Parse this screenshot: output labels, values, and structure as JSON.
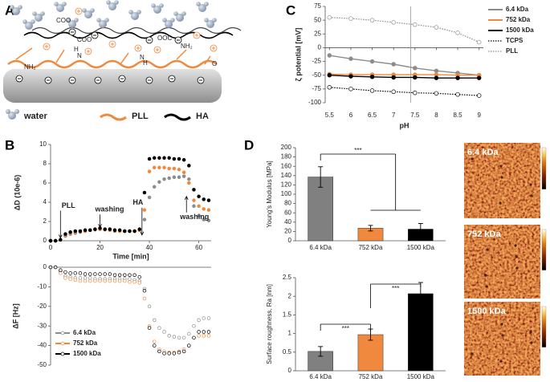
{
  "panels": [
    "A",
    "B",
    "C",
    "D"
  ],
  "schematic": {
    "legend": [
      "water",
      "PLL",
      "HA"
    ],
    "groups": [
      "COO",
      "COO",
      "OOC",
      "NH₂",
      "NH₂",
      "H",
      "N",
      "N",
      "H",
      "O"
    ]
  },
  "images": [
    {
      "label": "6.4 kDa"
    },
    {
      "label": "752 kDa"
    },
    {
      "label": "1500 kDa"
    }
  ],
  "chart_data": [
    {
      "type": "line",
      "ylabel": "ζ potential [mV]",
      "xlabel": "pH",
      "x": [
        5.5,
        6,
        6.5,
        7,
        7.5,
        8,
        8.5,
        9
      ],
      "xlim": [
        5.4,
        9.1
      ],
      "xticks": [
        5.5,
        6,
        6.5,
        7,
        7.5,
        8,
        8.5,
        9
      ],
      "ylim": [
        -100,
        75
      ],
      "yticks": [
        -100,
        -75,
        -50,
        -25,
        0,
        25,
        50,
        75
      ],
      "reference_x": 7.4,
      "legend": "outside right",
      "series": [
        {
          "name": "6.4 kDa",
          "color": "#8c8c8c",
          "line_style": "solid",
          "marker": "filled",
          "values": [
            -14,
            -20,
            -25,
            -30,
            -37,
            -42,
            -46,
            -50
          ]
        },
        {
          "name": "752 kDa",
          "color": "#f0883e",
          "line_style": "solid",
          "marker": "filled",
          "values": [
            -48,
            -49,
            -49,
            -49,
            -49,
            -49,
            -50,
            -50
          ]
        },
        {
          "name": "1500 kDa",
          "color": "#000000",
          "line_style": "solid",
          "marker": "filled",
          "values": [
            -50,
            -52,
            -53,
            -54,
            -54,
            -55,
            -55,
            -55
          ]
        },
        {
          "name": "TCPS",
          "color": "#000000",
          "line_style": "dotted",
          "marker": "open",
          "values": [
            -72,
            -75,
            -78,
            -80,
            -82,
            -83,
            -85,
            -87
          ]
        },
        {
          "name": "PLL",
          "color": "#8c8c8c",
          "line_style": "dotted",
          "marker": "open",
          "values": [
            55,
            53,
            50,
            46,
            42,
            37,
            27,
            10
          ]
        }
      ]
    },
    {
      "type": "line",
      "ylabel": "ΔD (10e-6)",
      "xlabel": "Time [min]",
      "x": [
        0,
        2,
        4,
        6,
        8,
        10,
        12,
        14,
        16,
        18,
        20,
        22,
        24,
        26,
        28,
        30,
        32,
        34,
        36,
        38,
        40,
        42,
        44,
        46,
        48,
        50,
        52,
        54,
        56,
        58,
        60,
        62,
        64
      ],
      "xlim": [
        0,
        65
      ],
      "xticks": [
        0,
        20,
        40,
        60
      ],
      "ylim": [
        0,
        10
      ],
      "yticks": [
        0,
        2,
        4,
        6,
        8,
        10
      ],
      "annotations": [
        {
          "text": "PLL",
          "x": 4,
          "y": 0.3
        },
        {
          "text": "washing",
          "x": 20,
          "y": 1.4
        },
        {
          "text": "HA",
          "x": 37,
          "y": 0.6
        },
        {
          "text": "washing",
          "x": 55,
          "y": 4.6
        }
      ],
      "series": [
        {
          "name": "6.4 kDa",
          "color": "#8c8c8c",
          "line_style": "none",
          "marker": "filled",
          "values": [
            0,
            0,
            0.1,
            0.5,
            0.7,
            0.8,
            0.9,
            1.0,
            1.1,
            1.15,
            1.2,
            1.15,
            1.1,
            1.0,
            1.0,
            1.0,
            1.0,
            1.0,
            1.1,
            2.2,
            4.5,
            5.6,
            6.1,
            6.4,
            6.5,
            6.6,
            6.6,
            6.7,
            6.4,
            3.6,
            2.6,
            2.2,
            2.1
          ]
        },
        {
          "name": "752 kDa",
          "color": "#f0883e",
          "line_style": "none",
          "marker": "filled",
          "values": [
            0,
            0,
            0.1,
            0.6,
            0.8,
            0.9,
            1.0,
            1.0,
            1.1,
            1.2,
            1.2,
            1.2,
            1.1,
            1.1,
            1.0,
            1.0,
            1.0,
            1.0,
            1.1,
            3.2,
            7.2,
            7.6,
            7.6,
            7.6,
            7.5,
            7.5,
            7.4,
            7.1,
            6.0,
            4.2,
            3.6,
            3.3,
            3.2
          ]
        },
        {
          "name": "1500 kDa",
          "color": "#000000",
          "line_style": "none",
          "marker": "filled",
          "values": [
            0,
            0,
            0.1,
            0.7,
            0.9,
            1.0,
            1.0,
            1.1,
            1.1,
            1.2,
            1.3,
            1.2,
            1.2,
            1.1,
            1.1,
            1.0,
            1.0,
            1.0,
            1.2,
            5.0,
            8.5,
            8.6,
            8.6,
            8.6,
            8.6,
            8.5,
            8.5,
            8.4,
            7.8,
            5.3,
            4.6,
            4.3,
            4.2
          ]
        }
      ]
    },
    {
      "type": "line",
      "ylabel": "ΔF [Hz]",
      "x": [
        0,
        2,
        4,
        6,
        8,
        10,
        12,
        14,
        16,
        18,
        20,
        22,
        24,
        26,
        28,
        30,
        32,
        34,
        36,
        38,
        40,
        42,
        44,
        46,
        48,
        50,
        52,
        54,
        56,
        58,
        60,
        62,
        64
      ],
      "xlim": [
        0,
        65
      ],
      "ylim": [
        -50,
        0
      ],
      "yticks": [
        -50,
        -40,
        -30,
        -20,
        -10,
        0
      ],
      "legend": "lower left",
      "series": [
        {
          "name": "6.4 kDa",
          "color": "#8c8c8c",
          "line_style": "none",
          "marker": "open",
          "values": [
            0,
            0,
            -2,
            -4.5,
            -5,
            -5.5,
            -5.5,
            -5.5,
            -5.5,
            -6,
            -6,
            -6,
            -6,
            -6,
            -6,
            -6,
            -6,
            -6.5,
            -7,
            -11,
            -20,
            -27,
            -31,
            -33,
            -35,
            -35.5,
            -36,
            -36,
            -34,
            -30,
            -27,
            -26,
            -26
          ]
        },
        {
          "name": "752 kDa",
          "color": "#f0883e",
          "line_style": "none",
          "marker": "open",
          "values": [
            0,
            0,
            -3,
            -5.5,
            -6,
            -6.5,
            -7,
            -7,
            -7,
            -7,
            -7,
            -7,
            -7,
            -7,
            -7,
            -7,
            -7.5,
            -7.5,
            -8,
            -16,
            -30,
            -38,
            -42,
            -43,
            -43.5,
            -43.5,
            -43,
            -42,
            -40,
            -36,
            -35,
            -35,
            -35
          ]
        },
        {
          "name": "1500 kDa",
          "color": "#000000",
          "line_style": "none",
          "marker": "open",
          "values": [
            0,
            0,
            -1.5,
            -2.5,
            -3,
            -3,
            -3,
            -3.5,
            -3.5,
            -3.5,
            -3.5,
            -3.5,
            -3.5,
            -4,
            -4,
            -4,
            -4,
            -4,
            -5,
            -12,
            -31,
            -40,
            -43,
            -44,
            -44,
            -44,
            -43.5,
            -43,
            -40,
            -36,
            -33,
            -33,
            -33
          ]
        }
      ]
    },
    {
      "type": "bar",
      "ylabel": "Young's Modulus [MPa]",
      "categories": [
        "6.4 kDa",
        "752 kDa",
        "1500 kDa"
      ],
      "values": [
        137,
        27,
        25
      ],
      "errors": [
        22,
        6,
        12
      ],
      "colors": [
        "#808080",
        "#f0883e",
        "#000000"
      ],
      "ylim": [
        0,
        200
      ],
      "yticks": [
        0,
        20,
        40,
        60,
        80,
        100,
        120,
        140,
        160,
        180,
        200
      ],
      "significance": [
        "***"
      ]
    },
    {
      "type": "bar",
      "ylabel": "Surface roughness, Ra [nm]",
      "categories": [
        "6.4 kDa",
        "752 kDa",
        "1500 kDa"
      ],
      "values": [
        0.52,
        0.97,
        2.07
      ],
      "errors": [
        0.13,
        0.15,
        0.3
      ],
      "colors": [
        "#808080",
        "#f0883e",
        "#000000"
      ],
      "ylim": [
        0,
        2.5
      ],
      "yticks": [
        0,
        0.5,
        1,
        1.5,
        2,
        2.5
      ],
      "significance": [
        "***",
        "***"
      ]
    }
  ]
}
